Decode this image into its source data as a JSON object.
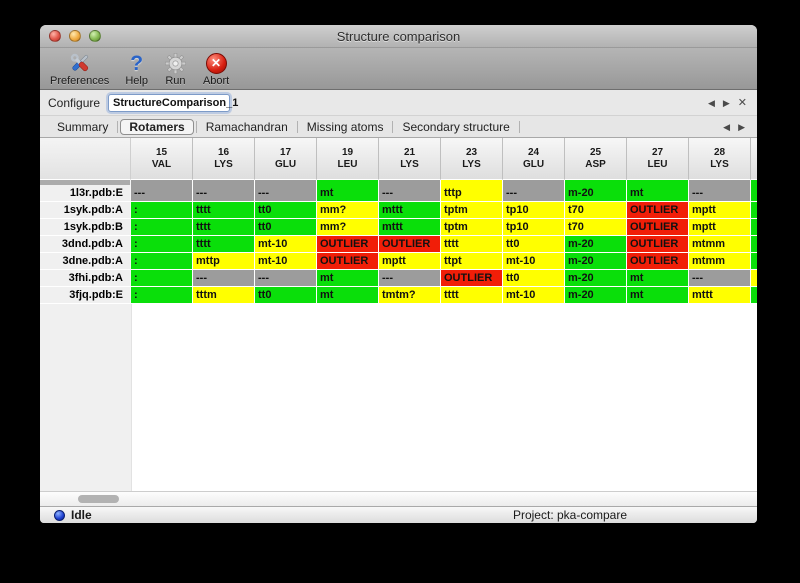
{
  "window": {
    "title": "Structure comparison"
  },
  "toolbar": {
    "items": [
      {
        "label": "Preferences",
        "icon": "tools-icon"
      },
      {
        "label": "Help",
        "icon": "help-icon"
      },
      {
        "label": "Run",
        "icon": "gear-icon"
      },
      {
        "label": "Abort",
        "icon": "abort-icon"
      }
    ]
  },
  "configure": {
    "label": "Configure",
    "value": "StructureComparison_1",
    "nav": {
      "prev": "◀",
      "next": "▶",
      "close": "✕"
    }
  },
  "tabs": {
    "items": [
      "Summary",
      "Rotamers",
      "Ramachandran",
      "Missing atoms",
      "Secondary structure"
    ],
    "active": "Rotamers",
    "nav": {
      "prev": "◀",
      "next": "▶"
    }
  },
  "table": {
    "columns": [
      {
        "num": "15",
        "res": "VAL"
      },
      {
        "num": "16",
        "res": "LYS"
      },
      {
        "num": "17",
        "res": "GLU"
      },
      {
        "num": "19",
        "res": "LEU"
      },
      {
        "num": "21",
        "res": "LYS"
      },
      {
        "num": "23",
        "res": "LYS"
      },
      {
        "num": "24",
        "res": "GLU"
      },
      {
        "num": "25",
        "res": "ASP"
      },
      {
        "num": "27",
        "res": "LEU"
      },
      {
        "num": "28",
        "res": "LYS"
      }
    ],
    "partial_row": {
      "colors": [
        "gray",
        "gray",
        "gray",
        "green",
        "gray",
        "yellow",
        "gray",
        "green",
        "green",
        "gray"
      ],
      "sliver": "green"
    },
    "rows": [
      {
        "label": "1l3r.pdb:E",
        "sliver": "green",
        "cells": [
          {
            "text": "---",
            "color": "gray"
          },
          {
            "text": "---",
            "color": "gray"
          },
          {
            "text": "---",
            "color": "gray"
          },
          {
            "text": "mt",
            "color": "green"
          },
          {
            "text": "---",
            "color": "gray"
          },
          {
            "text": "tttp",
            "color": "yellow"
          },
          {
            "text": "---",
            "color": "gray"
          },
          {
            "text": "m-20",
            "color": "green"
          },
          {
            "text": "mt",
            "color": "green"
          },
          {
            "text": "---",
            "color": "gray"
          }
        ]
      },
      {
        "label": "1syk.pdb:A",
        "sliver": "green",
        "cells": [
          {
            "text": ":",
            "color": "green"
          },
          {
            "text": "tttt",
            "color": "green"
          },
          {
            "text": "tt0",
            "color": "green"
          },
          {
            "text": "mm?",
            "color": "yellow"
          },
          {
            "text": "mttt",
            "color": "green"
          },
          {
            "text": "tptm",
            "color": "yellow"
          },
          {
            "text": "tp10",
            "color": "yellow"
          },
          {
            "text": "t70",
            "color": "yellow"
          },
          {
            "text": "OUTLIER",
            "color": "red"
          },
          {
            "text": "mptt",
            "color": "yellow"
          }
        ]
      },
      {
        "label": "1syk.pdb:B",
        "sliver": "green",
        "cells": [
          {
            "text": ":",
            "color": "green"
          },
          {
            "text": "tttt",
            "color": "green"
          },
          {
            "text": "tt0",
            "color": "green"
          },
          {
            "text": "mm?",
            "color": "yellow"
          },
          {
            "text": "mttt",
            "color": "green"
          },
          {
            "text": "tptm",
            "color": "yellow"
          },
          {
            "text": "tp10",
            "color": "yellow"
          },
          {
            "text": "t70",
            "color": "yellow"
          },
          {
            "text": "OUTLIER",
            "color": "red"
          },
          {
            "text": "mptt",
            "color": "yellow"
          }
        ]
      },
      {
        "label": "3dnd.pdb:A",
        "sliver": "green",
        "cells": [
          {
            "text": ":",
            "color": "green"
          },
          {
            "text": "tttt",
            "color": "green"
          },
          {
            "text": "mt-10",
            "color": "yellow"
          },
          {
            "text": "OUTLIER",
            "color": "red"
          },
          {
            "text": "OUTLIER",
            "color": "red"
          },
          {
            "text": "tttt",
            "color": "yellow"
          },
          {
            "text": "tt0",
            "color": "yellow"
          },
          {
            "text": "m-20",
            "color": "green"
          },
          {
            "text": "OUTLIER",
            "color": "red"
          },
          {
            "text": "mtmm",
            "color": "yellow"
          }
        ]
      },
      {
        "label": "3dne.pdb:A",
        "sliver": "green",
        "cells": [
          {
            "text": ":",
            "color": "green"
          },
          {
            "text": "mttp",
            "color": "yellow"
          },
          {
            "text": "mt-10",
            "color": "yellow"
          },
          {
            "text": "OUTLIER",
            "color": "red"
          },
          {
            "text": "mptt",
            "color": "yellow"
          },
          {
            "text": "ttpt",
            "color": "yellow"
          },
          {
            "text": "mt-10",
            "color": "yellow"
          },
          {
            "text": "m-20",
            "color": "green"
          },
          {
            "text": "OUTLIER",
            "color": "red"
          },
          {
            "text": "mtmm",
            "color": "yellow"
          }
        ]
      },
      {
        "label": "3fhi.pdb:A",
        "sliver": "yellow",
        "cells": [
          {
            "text": ":",
            "color": "green"
          },
          {
            "text": "---",
            "color": "gray"
          },
          {
            "text": "---",
            "color": "gray"
          },
          {
            "text": "mt",
            "color": "green"
          },
          {
            "text": "---",
            "color": "gray"
          },
          {
            "text": "OUTLIER",
            "color": "red"
          },
          {
            "text": "tt0",
            "color": "yellow"
          },
          {
            "text": "m-20",
            "color": "green"
          },
          {
            "text": "mt",
            "color": "green"
          },
          {
            "text": "---",
            "color": "gray"
          }
        ]
      },
      {
        "label": "3fjq.pdb:E",
        "sliver": "green",
        "cells": [
          {
            "text": ":",
            "color": "green"
          },
          {
            "text": "tttm",
            "color": "yellow"
          },
          {
            "text": "tt0",
            "color": "green"
          },
          {
            "text": "mt",
            "color": "green"
          },
          {
            "text": "tmtm?",
            "color": "yellow"
          },
          {
            "text": "tttt",
            "color": "yellow"
          },
          {
            "text": "mt-10",
            "color": "yellow"
          },
          {
            "text": "m-20",
            "color": "green"
          },
          {
            "text": "mt",
            "color": "green"
          },
          {
            "text": "mttt",
            "color": "yellow"
          }
        ]
      }
    ]
  },
  "status_bar": {
    "state": "Idle",
    "project": "Project: pka-compare"
  },
  "colors": {
    "green": "#0adf0a",
    "yellow": "#ffff00",
    "red": "#f11e08",
    "gray": "#9c9c9c"
  }
}
